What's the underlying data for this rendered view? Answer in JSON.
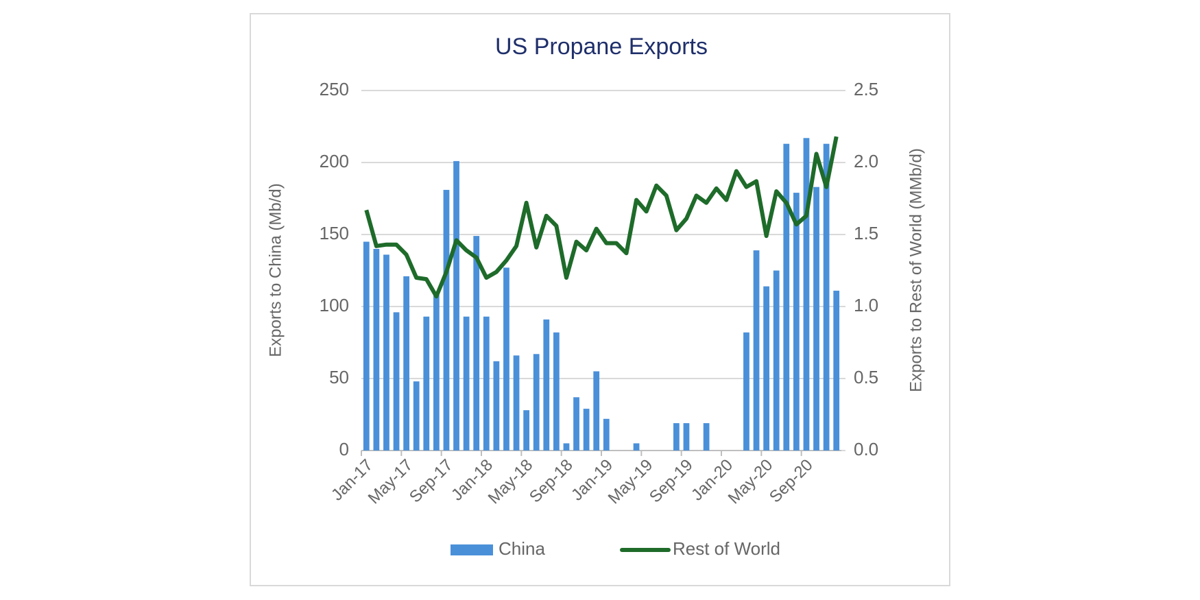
{
  "chart_data": {
    "type": "bar_line",
    "title": "US Propane Exports",
    "y_label": "Exports to China (Mb/d)",
    "y2_label": "Exports to Rest of World (MMb/d)",
    "categories": [
      "Jan-17",
      null,
      null,
      null,
      "May-17",
      null,
      null,
      null,
      "Sep-17",
      null,
      null,
      null,
      "Jan-18",
      null,
      null,
      null,
      "May-18",
      null,
      null,
      null,
      "Sep-18",
      null,
      null,
      null,
      "Jan-19",
      null,
      null,
      null,
      "May-19",
      null,
      null,
      null,
      "Sep-19",
      null,
      null,
      null,
      "Jan-20",
      null,
      null,
      null,
      "May-20",
      null,
      null,
      null,
      "Sep-20",
      null,
      null,
      null
    ],
    "series": [
      {
        "name": "China",
        "type": "bar",
        "color": "#4a90d9",
        "values": [
          145,
          140,
          136,
          96,
          121,
          48,
          93,
          108,
          181,
          201,
          93,
          149,
          93,
          62,
          127,
          66,
          28,
          67,
          91,
          82,
          5,
          37,
          29,
          55,
          22,
          0,
          0,
          5,
          0,
          0,
          0,
          19,
          19,
          0,
          19,
          0,
          0,
          0,
          82,
          139,
          114,
          125,
          213,
          179,
          217,
          183,
          213,
          111
        ]
      },
      {
        "name": "Rest of World",
        "type": "line",
        "axis": "y2",
        "color": "#1e6b2a",
        "values": [
          1.67,
          1.42,
          1.43,
          1.43,
          1.36,
          1.2,
          1.19,
          1.07,
          1.24,
          1.46,
          1.39,
          1.34,
          1.2,
          1.24,
          1.32,
          1.42,
          1.72,
          1.41,
          1.63,
          1.56,
          1.2,
          1.45,
          1.39,
          1.54,
          1.44,
          1.44,
          1.37,
          1.74,
          1.66,
          1.84,
          1.77,
          1.53,
          1.61,
          1.77,
          1.72,
          1.82,
          1.74,
          1.94,
          1.83,
          1.87,
          1.49,
          1.8,
          1.72,
          1.57,
          1.63,
          2.06,
          1.83,
          2.18
        ]
      }
    ],
    "ylim": [
      0,
      250
    ],
    "yticks": [
      0,
      50,
      100,
      150,
      200,
      250
    ],
    "y2lim": [
      0,
      2.5
    ],
    "y2ticks": [
      {
        "value": 0,
        "label": "0.0"
      },
      0.5,
      {
        "value": 1,
        "label": "1.0"
      },
      1.5,
      {
        "value": 2,
        "label": "2.0"
      },
      2.5
    ],
    "grid": true,
    "legend": "bottom"
  }
}
